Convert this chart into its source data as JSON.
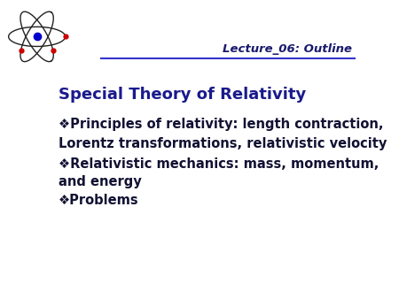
{
  "background_color": "#ffffff",
  "header_line_color": "#3333cc",
  "header_text": "Lecture_06: Outline",
  "header_text_color": "#1a1a6e",
  "header_fontsize": 9.5,
  "title": "Special Theory of Relativity",
  "title_color": "#1a1a8c",
  "title_fontsize": 13,
  "bullet_symbol": "❖",
  "body_color": "#111133",
  "body_fontsize": 10.5,
  "bullets": [
    "Principles of relativity: length contraction,",
    "Lorentz transformations, relativistic velocity",
    "Relativistic mechanics: mass, momentum,",
    "and energy",
    "Problems"
  ],
  "bullet_indices": [
    0,
    2,
    4
  ],
  "atom_line_color": "#222222",
  "atom_nucleus_color": "#0000cc",
  "atom_electron_color": "#cc0000"
}
